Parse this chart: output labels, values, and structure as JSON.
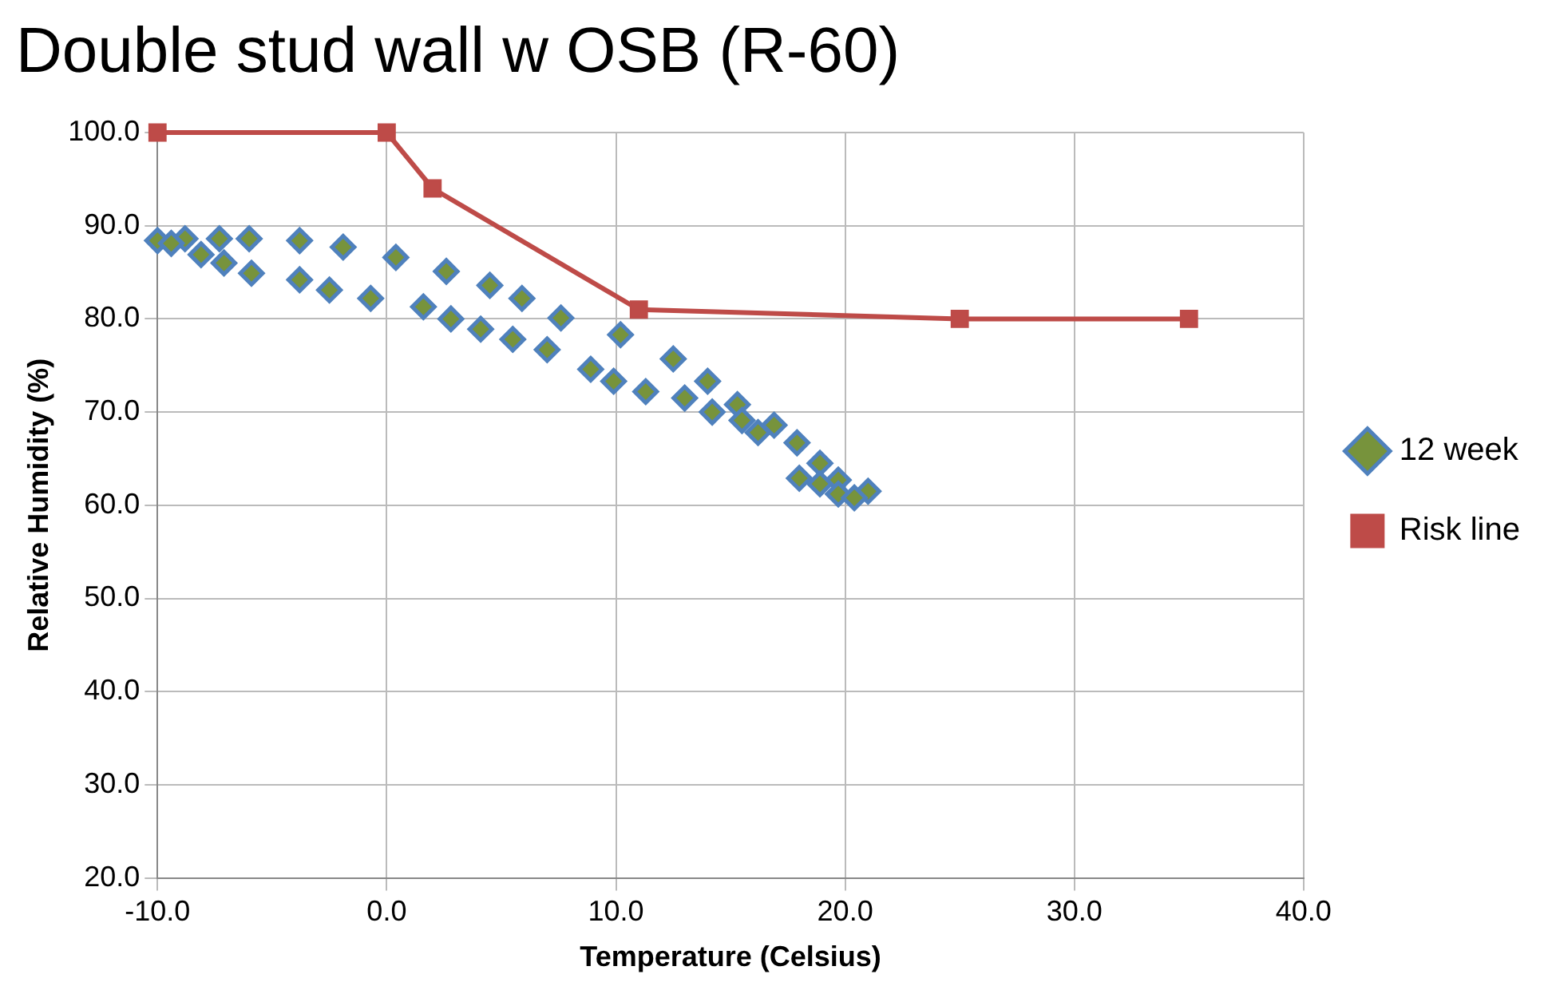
{
  "chart_data": {
    "type": "scatter",
    "title": "Double stud wall w OSB (R-60)",
    "xlabel": "Temperature (Celsius)",
    "ylabel": "Relative Humidity (%)",
    "xlim": [
      -10,
      40
    ],
    "xticks": [
      {
        "value": -10,
        "label": "-10.0"
      },
      {
        "value": 0,
        "label": "0.0"
      },
      {
        "value": 10,
        "label": "10.0"
      },
      {
        "value": 20,
        "label": "20.0"
      },
      {
        "value": 30,
        "label": "30.0"
      },
      {
        "value": 40,
        "label": "40.0"
      }
    ],
    "ylim": [
      20,
      100
    ],
    "yticks": [
      {
        "value": 20,
        "label": "20.0"
      },
      {
        "value": 30,
        "label": "30.0"
      },
      {
        "value": 40,
        "label": "40.0"
      },
      {
        "value": 50,
        "label": "50.0"
      },
      {
        "value": 60,
        "label": "60.0"
      },
      {
        "value": 70,
        "label": "70.0"
      },
      {
        "value": 80,
        "label": "80.0"
      },
      {
        "value": 90,
        "label": "90.0"
      },
      {
        "value": 100,
        "label": "100.0"
      }
    ],
    "grid": true,
    "legend": "right",
    "series": [
      {
        "name": "12 week",
        "type": "scatter",
        "marker": "diamond",
        "color": "#77933c",
        "x": [
          -10,
          -8.8,
          -7.3,
          -6.0,
          -3.8,
          -1.9,
          0.4,
          2.6,
          4.5,
          5.9,
          7.6,
          10.2,
          12.5,
          14.0,
          15.3,
          16.9,
          17.9,
          18.9,
          19.7,
          21.0,
          -9.4,
          -8.1,
          -7.1,
          -5.9,
          -3.8,
          -2.5,
          -0.7,
          1.6,
          2.8,
          4.1,
          5.5,
          7.0,
          8.9,
          9.9,
          11.3,
          13.0,
          14.2,
          15.5,
          16.2,
          18.0,
          18.9,
          19.7,
          20.4
        ],
        "values": [
          88.4,
          88.6,
          88.6,
          88.6,
          88.4,
          87.7,
          86.6,
          85.1,
          83.6,
          82.2,
          80.1,
          78.3,
          75.7,
          73.3,
          70.8,
          68.6,
          66.7,
          64.5,
          62.7,
          61.5,
          88.1,
          86.9,
          86.0,
          84.9,
          84.2,
          83.1,
          82.2,
          81.3,
          80.0,
          78.9,
          77.8,
          76.7,
          74.6,
          73.3,
          72.2,
          71.5,
          70.0,
          69.1,
          67.8,
          62.9,
          62.3,
          61.2,
          60.8
        ]
      },
      {
        "name": "Risk line",
        "type": "line",
        "marker": "square",
        "line_style": "solid",
        "color": "#be4b48",
        "x": [
          -10,
          0,
          2,
          11,
          25,
          35
        ],
        "values": [
          100,
          100,
          94,
          81,
          80,
          80
        ]
      }
    ]
  }
}
